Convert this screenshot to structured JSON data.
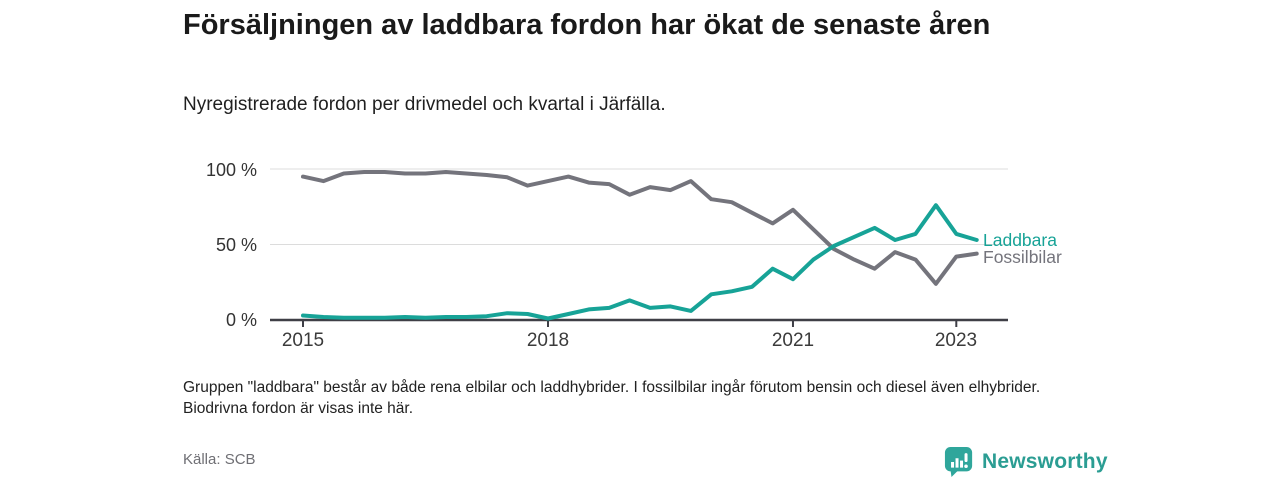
{
  "header": {
    "title": "Försäljningen av laddbara fordon har ökat de senaste åren",
    "subtitle": "Nyregistrerade fordon per drivmedel och kvartal i Järfälla."
  },
  "chart_data": {
    "type": "line",
    "title": "Nyregistrerade fordon per drivmedel och kvartal i Järfälla",
    "x_unit": "quarter",
    "x_start": "2015 Q1",
    "x_end": "2023 Q2",
    "x_ticks": [
      "2015",
      "2018",
      "2021",
      "2023"
    ],
    "y_ticks_top_to_bottom": [
      "100 %",
      "50 %",
      "0 %"
    ],
    "ylim": [
      0,
      100
    ],
    "grid": "horizontal",
    "legend_position": "right-end-of-line",
    "quarters": [
      "2015 Q1",
      "2015 Q2",
      "2015 Q3",
      "2015 Q4",
      "2016 Q1",
      "2016 Q2",
      "2016 Q3",
      "2016 Q4",
      "2017 Q1",
      "2017 Q2",
      "2017 Q3",
      "2017 Q4",
      "2018 Q1",
      "2018 Q2",
      "2018 Q3",
      "2018 Q4",
      "2019 Q1",
      "2019 Q2",
      "2019 Q3",
      "2019 Q4",
      "2020 Q1",
      "2020 Q2",
      "2020 Q3",
      "2020 Q4",
      "2021 Q1",
      "2021 Q2",
      "2021 Q3",
      "2021 Q4",
      "2022 Q1",
      "2022 Q2",
      "2022 Q3",
      "2022 Q4",
      "2023 Q1",
      "2023 Q2"
    ],
    "series": [
      {
        "name": "Fossilbilar",
        "color": "#74747c",
        "values": [
          95,
          92,
          97,
          98,
          98,
          97,
          97,
          98,
          97,
          96,
          94.5,
          89,
          92,
          95,
          91,
          90,
          83,
          88,
          86,
          92,
          80,
          78,
          71,
          64,
          73,
          60,
          47,
          40,
          34,
          45,
          40,
          24,
          42,
          44
        ]
      },
      {
        "name": "Laddbara",
        "color": "#17a397",
        "values": [
          3,
          2,
          1.5,
          1.5,
          1.5,
          2,
          1.5,
          2,
          2,
          2.5,
          4.5,
          4,
          1,
          4,
          7,
          8,
          13,
          8,
          9,
          6,
          17,
          19,
          22,
          34,
          27,
          40,
          49,
          55,
          61,
          53,
          57,
          76,
          57,
          53
        ]
      }
    ]
  },
  "footer": {
    "note": "Gruppen \"laddbara\" består av både rena elbilar och laddhybrider. I fossilbilar ingår förutom bensin och diesel även elhybrider. Biodrivna fordon är visas inte här.",
    "source": "Källa: SCB",
    "brand": "Newsworthy"
  },
  "colors": {
    "laddbara_line": "#17a397",
    "fossilbilar_line": "#74747c",
    "gridline": "#dcdcdc",
    "axis": "#3f3f46",
    "brand_teal": "#2b9d93",
    "title_text": "#1a1a1a"
  }
}
